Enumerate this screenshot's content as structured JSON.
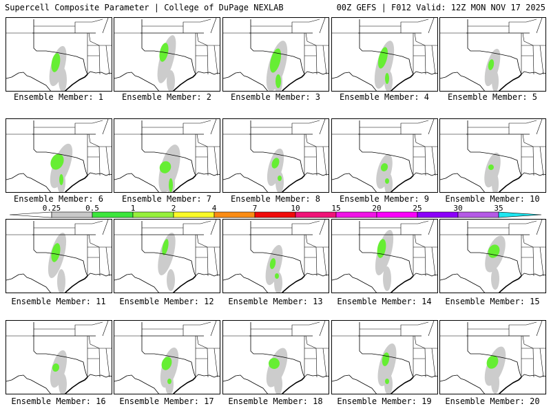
{
  "header": {
    "title_left": "Supercell Composite Parameter | College of DuPage NEXLAB",
    "title_right": "00Z GEFS | F012 Valid: 12Z MON NOV 17 2025"
  },
  "members": [
    {
      "label": "Ensemble Member: 1"
    },
    {
      "label": "Ensemble Member: 2"
    },
    {
      "label": "Ensemble Member: 3"
    },
    {
      "label": "Ensemble Member: 4"
    },
    {
      "label": "Ensemble Member: 5"
    },
    {
      "label": "Ensemble Member: 6"
    },
    {
      "label": "Ensemble Member: 7"
    },
    {
      "label": "Ensemble Member: 8"
    },
    {
      "label": "Ensemble Member: 9"
    },
    {
      "label": "Ensemble Member: 10"
    },
    {
      "label": "Ensemble Member: 11"
    },
    {
      "label": "Ensemble Member: 12"
    },
    {
      "label": "Ensemble Member: 13"
    },
    {
      "label": "Ensemble Member: 14"
    },
    {
      "label": "Ensemble Member: 15"
    },
    {
      "label": "Ensemble Member: 16"
    },
    {
      "label": "Ensemble Member: 17"
    },
    {
      "label": "Ensemble Member: 18"
    },
    {
      "label": "Ensemble Member: 19"
    },
    {
      "label": "Ensemble Member: 20"
    }
  ],
  "colorbar": {
    "ticks": [
      "0.25",
      "0.5",
      "1",
      "2",
      "4",
      "7",
      "10",
      "15",
      "20",
      "25",
      "30",
      "35"
    ],
    "colors": [
      "#ffffff",
      "#c8c8c8",
      "#3ce63c",
      "#96f03c",
      "#fafa28",
      "#fa8c14",
      "#f00a0a",
      "#f01478",
      "#f014e6",
      "#fa00fa",
      "#8c00fa",
      "#b45ae6",
      "#1ee6f0"
    ]
  },
  "map_colors": {
    "light": "#cccccc",
    "green": "#66ee33",
    "yellow": "#eeee55"
  }
}
